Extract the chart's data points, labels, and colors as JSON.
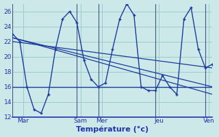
{
  "title": "Température (°c)",
  "bg_color": "#cce8e8",
  "line_color": "#1a3a9c",
  "grid_color": "#99cccc",
  "ylim": [
    12,
    27
  ],
  "yticks": [
    12,
    14,
    16,
    18,
    20,
    22,
    24,
    26
  ],
  "xlim": [
    0,
    28
  ],
  "day_ticks": [
    1.5,
    9.5,
    12.5,
    20.5,
    27.5
  ],
  "day_labels": [
    "Mar",
    "Sam",
    "Mer",
    "Jeu",
    "Ven"
  ],
  "vline_positions": [
    0,
    9,
    12,
    20,
    27
  ],
  "series0_x": [
    0,
    1,
    2,
    3,
    4,
    5,
    6,
    7,
    8,
    9,
    10,
    11,
    12,
    13,
    14,
    15,
    16,
    17,
    18,
    19,
    20,
    21,
    22,
    23,
    24,
    25,
    26,
    27,
    28
  ],
  "series0_y": [
    23,
    22,
    16,
    13,
    12.5,
    15,
    21,
    25,
    26,
    24.5,
    19.5,
    17,
    16,
    16.5,
    21,
    25,
    27,
    25.5,
    16,
    15.5,
    15.5,
    17.5,
    16,
    15,
    25,
    26.5,
    21,
    18.5,
    19
  ],
  "series1_x": [
    0,
    28
  ],
  "series1_y": [
    16,
    16
  ],
  "series2_x": [
    0,
    28
  ],
  "series2_y": [
    22.5,
    16
  ],
  "series3_x": [
    0,
    28
  ],
  "series3_y": [
    22.5,
    15
  ],
  "series4_x": [
    0,
    28
  ],
  "series4_y": [
    22.0,
    18.5
  ]
}
